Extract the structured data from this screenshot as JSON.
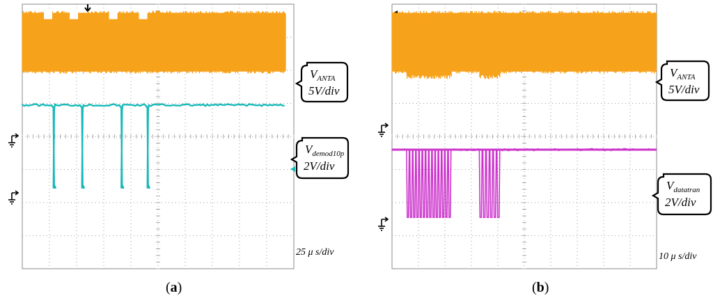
{
  "chart_data": [
    {
      "type": "line",
      "panel_label": "a",
      "timebase": "25 μ s/div",
      "grid": {
        "divisions_x": 10,
        "divisions_y": 8,
        "visible": true
      },
      "series": [
        {
          "name": "V",
          "subscript": "ANTA",
          "scale": "5V/div",
          "color": "#f7a21b",
          "kind": "carrier",
          "amplitude_div": 0.95,
          "center_div": 6.85,
          "gap_centers_div": [
            0.95,
            1.9,
            3.35,
            4.45
          ],
          "gap_width_div": 0.18,
          "gap_depth_div": 0.12
        },
        {
          "name": "V",
          "subscript": "demod10p",
          "scale": "2V/div",
          "color": "#19b8b8",
          "kind": "pulses",
          "high_div": 4.95,
          "low_div": 2.45,
          "pulses_div": [
            [
              1.07,
              1.2
            ],
            [
              2.12,
              2.25
            ],
            [
              3.57,
              3.7
            ],
            [
              4.53,
              4.66
            ]
          ]
        }
      ]
    },
    {
      "type": "line",
      "panel_label": "b",
      "timebase": "10 μ s/div",
      "grid": {
        "divisions_x": 10,
        "divisions_y": 8,
        "visible": true
      },
      "series": [
        {
          "name": "V",
          "subscript": "ANTA",
          "scale": "5V/div",
          "color": "#f7a21b",
          "kind": "carrier",
          "amplitude_div": 0.95,
          "center_div": 6.85,
          "burst_regions_div": [
            [
              0.55,
              2.25
            ],
            [
              3.3,
              4.1
            ]
          ],
          "burst_dip_div": 0.55
        },
        {
          "name": "V",
          "subscript": "datatran",
          "scale": "2V/div",
          "color": "#cc33cc",
          "kind": "burst",
          "high_div": 3.6,
          "low_div": 1.55,
          "burst_regions_div": [
            [
              0.55,
              2.25
            ],
            [
              3.3,
              4.1
            ]
          ],
          "burst_periods": [
            14,
            6
          ]
        }
      ]
    }
  ]
}
